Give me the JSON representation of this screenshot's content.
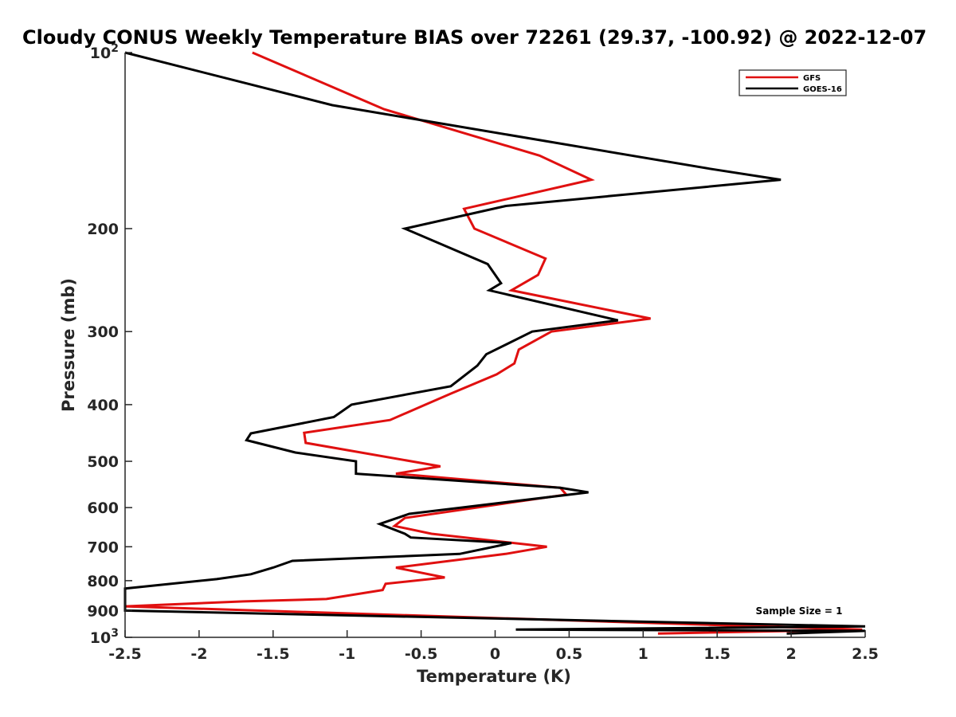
{
  "chart_data": {
    "type": "line",
    "title": "Cloudy CONUS Weekly Temperature BIAS over 72261 (29.37, -100.92) @ 2022-12-07",
    "xlabel": "Temperature (K)",
    "ylabel": "Pressure (mb)",
    "xlim": [
      -2.5,
      2.5
    ],
    "ylim": [
      100,
      1000
    ],
    "y_scale": "log",
    "y_reversed": true,
    "grid": false,
    "legend_position": "top-right",
    "x_ticks": [
      "-2.5",
      "-2",
      "-1.5",
      "-1",
      "-0.5",
      "0",
      "0.5",
      "1",
      "1.5",
      "2",
      "2.5"
    ],
    "y_ticks": [
      {
        "value": 100,
        "label": "10",
        "sup": "2"
      },
      {
        "value": 200,
        "label": "200"
      },
      {
        "value": 300,
        "label": "300"
      },
      {
        "value": 400,
        "label": "400"
      },
      {
        "value": 500,
        "label": "500"
      },
      {
        "value": 600,
        "label": "600"
      },
      {
        "value": 700,
        "label": "700"
      },
      {
        "value": 800,
        "label": "800"
      },
      {
        "value": 900,
        "label": "900"
      },
      {
        "value": 1000,
        "label": "10",
        "sup": "3"
      }
    ],
    "annotation": "Sample Size = 1",
    "series": [
      {
        "name": "GFS",
        "color": "#e01010",
        "points": [
          [
            -1.64,
            100
          ],
          [
            -0.75,
            125
          ],
          [
            0.3,
            150
          ],
          [
            0.65,
            165
          ],
          [
            -0.21,
            185
          ],
          [
            -0.14,
            200
          ],
          [
            0.34,
            225
          ],
          [
            0.29,
            240
          ],
          [
            0.11,
            255
          ],
          [
            1.05,
            285
          ],
          [
            0.38,
            300
          ],
          [
            0.16,
            322
          ],
          [
            0.13,
            340
          ],
          [
            0.01,
            355
          ],
          [
            -0.3,
            383
          ],
          [
            -0.71,
            425
          ],
          [
            -1.29,
            447
          ],
          [
            -1.28,
            465
          ],
          [
            -0.37,
            510
          ],
          [
            -0.67,
            525
          ],
          [
            0.44,
            555
          ],
          [
            0.48,
            570
          ],
          [
            -0.61,
            625
          ],
          [
            -0.68,
            645
          ],
          [
            -0.43,
            665
          ],
          [
            0.35,
            700
          ],
          [
            0.07,
            720
          ],
          [
            -0.67,
            760
          ],
          [
            -0.34,
            790
          ],
          [
            -0.74,
            810
          ],
          [
            -0.76,
            830
          ],
          [
            -1.14,
            860
          ],
          [
            -1.7,
            868
          ],
          [
            -2.5,
            885
          ],
          [
            2.48,
            970
          ],
          [
            1.1,
            985
          ]
        ]
      },
      {
        "name": "GOES-16",
        "color": "#000000",
        "points": [
          [
            -2.5,
            100
          ],
          [
            -1.1,
            123
          ],
          [
            1.45,
            158
          ],
          [
            1.93,
            165
          ],
          [
            0.07,
            183
          ],
          [
            -0.61,
            200
          ],
          [
            -0.05,
            230
          ],
          [
            0.04,
            248
          ],
          [
            -0.04,
            255
          ],
          [
            0.83,
            287
          ],
          [
            0.25,
            300
          ],
          [
            -0.06,
            328
          ],
          [
            -0.12,
            343
          ],
          [
            -0.3,
            372
          ],
          [
            -0.97,
            400
          ],
          [
            -1.09,
            420
          ],
          [
            -1.65,
            448
          ],
          [
            -1.68,
            460
          ],
          [
            -1.35,
            483
          ],
          [
            -0.94,
            500
          ],
          [
            -0.94,
            525
          ],
          [
            0.44,
            555
          ],
          [
            0.63,
            565
          ],
          [
            -0.58,
            615
          ],
          [
            -0.78,
            640
          ],
          [
            -0.61,
            665
          ],
          [
            -0.57,
            675
          ],
          [
            0.11,
            690
          ],
          [
            -0.24,
            720
          ],
          [
            -1.37,
            740
          ],
          [
            -1.5,
            760
          ],
          [
            -1.65,
            780
          ],
          [
            -1.88,
            795
          ],
          [
            -2.5,
            825
          ],
          [
            -2.5,
            900
          ],
          [
            2.5,
            958
          ],
          [
            0.14,
            970
          ],
          [
            2.5,
            975
          ],
          [
            1.97,
            985
          ]
        ]
      }
    ]
  }
}
